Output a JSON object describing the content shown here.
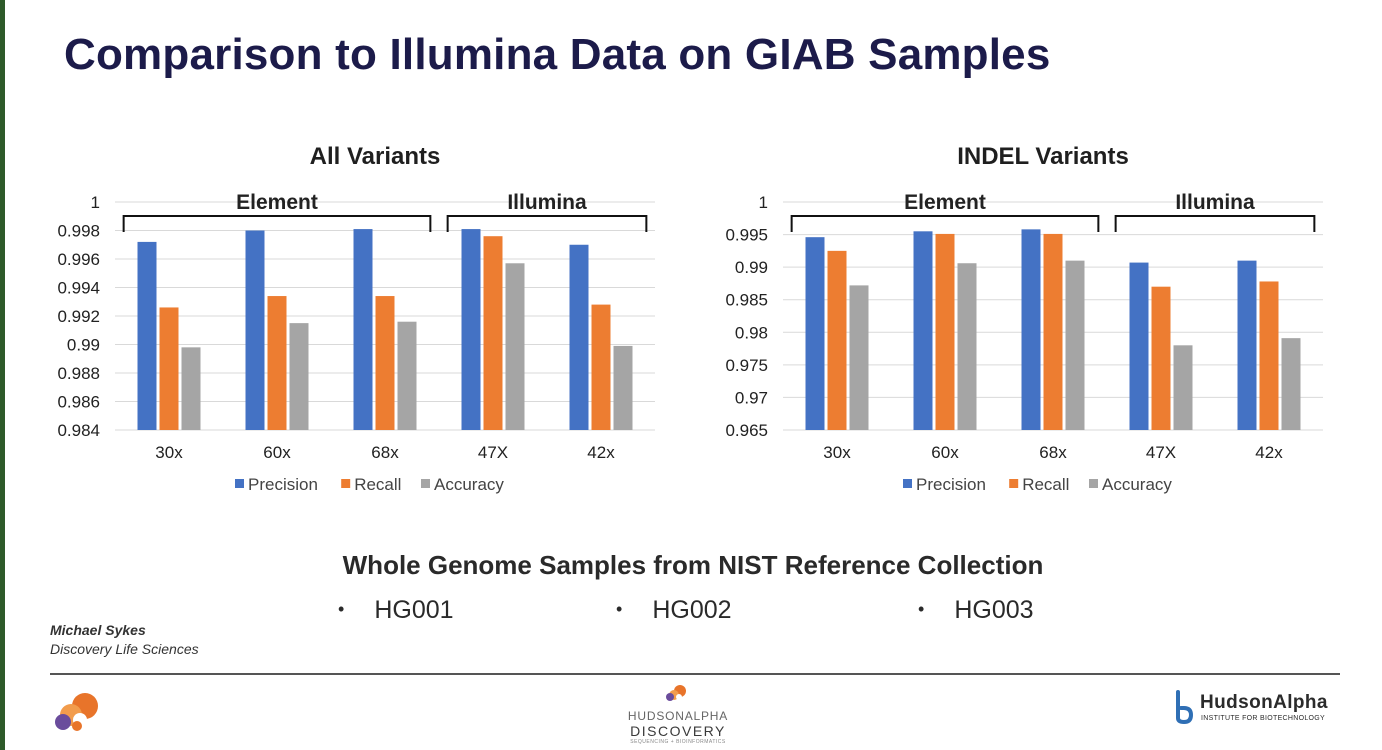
{
  "slide": {
    "title": "Comparison to Illumina Data on GIAB Samples",
    "subtitle": "Whole Genome Samples from NIST Reference Collection",
    "samples": [
      "HG001",
      "HG002",
      "HG003"
    ],
    "presenter_name": "Michael Sykes",
    "presenter_org": "Discovery Life Sciences",
    "logos": {
      "center_line1": "HUDSONALPHA",
      "center_line2": "DISCOVERY",
      "center_tagline": "SEQUENCING + BIOINFORMATICS",
      "right_name": "HudsonAlpha",
      "right_sub": "INSTITUTE FOR BIOTECHNOLOGY"
    }
  },
  "colors": {
    "precision": "#4472C4",
    "recall": "#ED7D31",
    "accuracy": "#A5A5A5",
    "title": "#1c1b4a"
  },
  "chart_data": [
    {
      "type": "bar",
      "title": "All Variants",
      "categories": [
        "30x",
        "60x",
        "68x",
        "47X",
        "42x"
      ],
      "groups": [
        {
          "label": "Element",
          "categories": [
            "30x",
            "60x",
            "68x"
          ]
        },
        {
          "label": "Illumina",
          "categories": [
            "47X",
            "42x"
          ]
        }
      ],
      "series": [
        {
          "name": "Precision",
          "values": [
            0.9972,
            0.998,
            0.9981,
            0.9981,
            0.997
          ]
        },
        {
          "name": "Recall",
          "values": [
            0.9926,
            0.9934,
            0.9934,
            0.9976,
            0.9928
          ]
        },
        {
          "name": "Accuracy",
          "values": [
            0.9898,
            0.9915,
            0.9916,
            0.9957,
            0.9899
          ]
        }
      ],
      "ylim": [
        0.984,
        1
      ],
      "yticks": [
        0.984,
        0.986,
        0.988,
        0.99,
        0.992,
        0.994,
        0.996,
        0.998,
        1
      ],
      "ytick_labels": [
        "0.984",
        "0.986",
        "0.988",
        "0.99",
        "0.992",
        "0.994",
        "0.996",
        "0.998",
        "1"
      ],
      "grid": true,
      "legend": "bottom"
    },
    {
      "type": "bar",
      "title": "INDEL Variants",
      "categories": [
        "30x",
        "60x",
        "68x",
        "47X",
        "42x"
      ],
      "groups": [
        {
          "label": "Element",
          "categories": [
            "30x",
            "60x",
            "68x"
          ]
        },
        {
          "label": "Illumina",
          "categories": [
            "47X",
            "42x"
          ]
        }
      ],
      "series": [
        {
          "name": "Precision",
          "values": [
            0.9946,
            0.9955,
            0.9958,
            0.9907,
            0.991
          ]
        },
        {
          "name": "Recall",
          "values": [
            0.9925,
            0.9951,
            0.9951,
            0.987,
            0.9878
          ]
        },
        {
          "name": "Accuracy",
          "values": [
            0.9872,
            0.9906,
            0.991,
            0.978,
            0.9791
          ]
        }
      ],
      "ylim": [
        0.965,
        1
      ],
      "yticks": [
        0.965,
        0.97,
        0.975,
        0.98,
        0.985,
        0.99,
        0.995,
        1
      ],
      "ytick_labels": [
        "0.965",
        "0.97",
        "0.975",
        "0.98",
        "0.985",
        "0.99",
        "0.995",
        "1"
      ],
      "grid": true,
      "legend": "bottom"
    }
  ]
}
